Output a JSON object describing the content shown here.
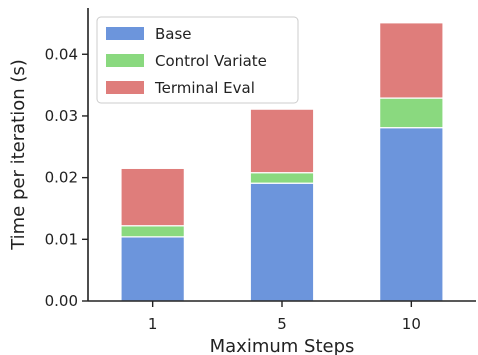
{
  "chart_data": {
    "type": "bar",
    "stacked": true,
    "categories": [
      "1",
      "5",
      "10"
    ],
    "series": [
      {
        "name": "Base",
        "color": "#6c95dc",
        "values": [
          0.0104,
          0.0191,
          0.0281
        ]
      },
      {
        "name": "Control Variate",
        "color": "#8ad97f",
        "values": [
          0.0018,
          0.0017,
          0.0048
        ]
      },
      {
        "name": "Terminal Eval",
        "color": "#df7d7b",
        "values": [
          0.0093,
          0.0103,
          0.0122
        ]
      }
    ],
    "xlabel": "Maximum Steps",
    "ylabel": "Time per iteration (s)",
    "ylim": [
      0,
      0.0475
    ],
    "yticks": [
      0.0,
      0.01,
      0.02,
      0.03,
      0.04
    ],
    "ytick_labels": [
      "0.00",
      "0.01",
      "0.02",
      "0.03",
      "0.04"
    ],
    "grid": false,
    "legend_position": "top-left"
  }
}
